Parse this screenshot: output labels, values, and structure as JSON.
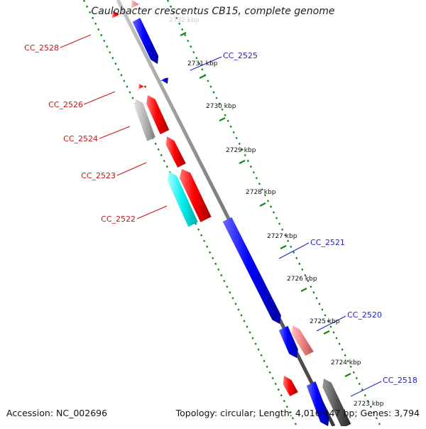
{
  "title": "Caulobacter crescentus CB15, complete genome",
  "footer": {
    "accession": "Accession: NC_002696",
    "summary": "Topology: circular; Length: 4,016,947 bp; Genes: 3,794"
  },
  "colors": {
    "forward": "#0000ff",
    "reverse": "#ff0000",
    "forward_label": "#1f1fbf",
    "reverse_label": "#cc1111",
    "backbone": "#8c8c8c",
    "tick_dots": "#118811",
    "gc_gray": "#b4b4b4",
    "cyan": "#00e5e5",
    "pink": "#f08080",
    "dark_gray": "#555555"
  },
  "ruler_labels": [
    "2732 kbp",
    "2731 kbp",
    "2730 kbp",
    "2729 kbp",
    "2728 kbp",
    "2727 kbp",
    "2726 kbp",
    "2725 kbp",
    "2724 kbp",
    "2723 kbp"
  ],
  "gene_labels": {
    "forward": [
      "CC_2525",
      "CC_2521",
      "CC_2520",
      "CC_2518"
    ],
    "reverse": [
      "CC_2528",
      "CC_2526",
      "CC_2524",
      "CC_2523",
      "CC_2522"
    ]
  }
}
